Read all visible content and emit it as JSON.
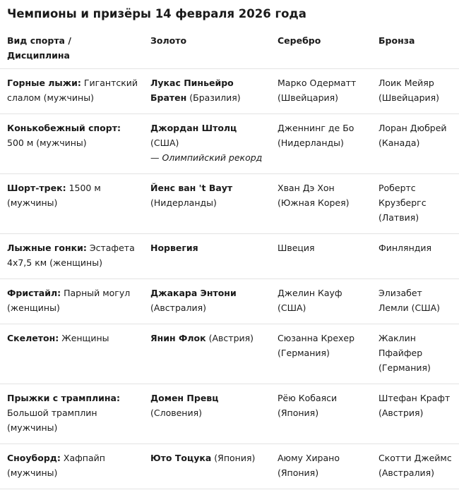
{
  "title": "Чемпионы и призёры 14 февраля 2026 года",
  "table": {
    "header": [
      "Вид спорта / Дисциплина",
      "Золото",
      "Серебро",
      "Бронза"
    ],
    "rows": [
      [
        {
          "strong": "Горные лыжи:",
          "text": "Гигантский слалом (мужчины)"
        },
        {
          "strong": "Лукас Пиньейро Братен",
          "text": "(Бразилия)"
        },
        "Марко Одерматт (Швейцария)",
        "Лоик Мейяр (Швейцария)"
      ],
      [
        {
          "strong": "Конькобежный спорт:",
          "text": "500 м (мужчины)"
        },
        {
          "strong": "Джордан Штолц",
          "text": "(США)",
          "note": "— Олимпийский рекорд"
        },
        "Дженнинг де Бо (Нидерланды)",
        "Лоран Дюбрей (Канада)"
      ],
      [
        {
          "strong": "Шорт-трек:",
          "text": "1500 м (мужчины)"
        },
        {
          "strong": "Йенс ван 't Ваут",
          "text": "(Нидерланды)"
        },
        "Хван Дэ Хон (Южная Корея)",
        "Робертс Крузбергс (Латвия)"
      ],
      [
        {
          "strong": "Лыжные гонки:",
          "text": "Эстафета 4х7,5 км (женщины)"
        },
        {
          "strong": "Норвегия"
        },
        "Швеция",
        "Финляндия"
      ],
      [
        {
          "strong": "Фристайл:",
          "text": "Парный могул (женщины)"
        },
        {
          "strong": "Джакара Энтони",
          "text": "(Австралия)"
        },
        "Джелин Кауф (США)",
        "Элизабет Лемли (США)"
      ],
      [
        {
          "strong": "Скелетон:",
          "text": "Женщины"
        },
        {
          "strong": "Янин Флок",
          "text": "(Австрия)"
        },
        "Сюзанна Крехер (Германия)",
        "Жаклин Пфайфер (Германия)"
      ],
      [
        {
          "strong": "Прыжки с трамплина:",
          "text": "Большой трамплин (мужчины)"
        },
        {
          "strong": "Домен Превц",
          "text": "(Словения)"
        },
        "Рёю Кобаяси (Япония)",
        "Штефан Крафт (Австрия)"
      ],
      [
        {
          "strong": "Сноуборд:",
          "text": "Хафпайп (мужчины)"
        },
        {
          "strong": "Юто Тоцука",
          "text": "(Япония)"
        },
        "Аюму Хирано (Япония)",
        "Скотти Джеймс (Австралия)"
      ]
    ]
  }
}
